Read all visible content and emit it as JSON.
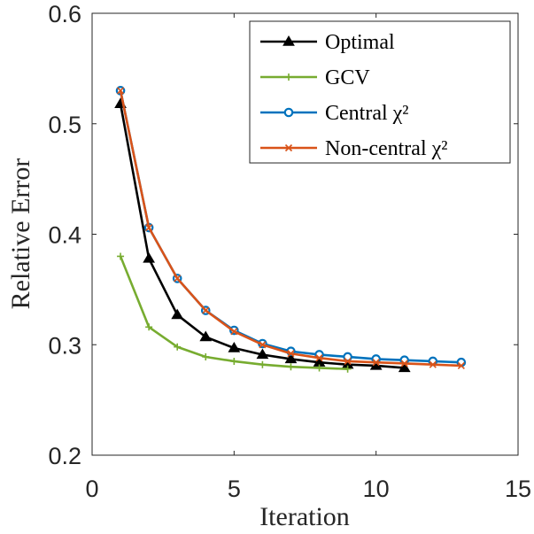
{
  "chart_data": {
    "type": "line",
    "xlabel": "Iteration",
    "ylabel": "Relative Error",
    "xlim": [
      0,
      15
    ],
    "ylim": [
      0.2,
      0.6
    ],
    "xticks": [
      0,
      5,
      10,
      15
    ],
    "yticks": [
      0.2,
      0.3,
      0.4,
      0.5,
      0.6
    ],
    "xtick_labels": [
      "0",
      "5",
      "10",
      "15"
    ],
    "ytick_labels": [
      "0.2",
      "0.3",
      "0.4",
      "0.5",
      "0.6"
    ],
    "grid": false,
    "legend_position": "top-right",
    "series": [
      {
        "name": "Optimal",
        "legend_label": "Optimal",
        "color": "#000000",
        "marker": "triangle",
        "x": [
          1,
          2,
          3,
          4,
          5,
          6,
          7,
          8,
          9,
          10,
          11
        ],
        "y": [
          0.518,
          0.378,
          0.327,
          0.307,
          0.297,
          0.291,
          0.287,
          0.284,
          0.282,
          0.281,
          0.279
        ]
      },
      {
        "name": "GCV",
        "legend_label": "GCV",
        "color": "#77ac30",
        "marker": "plus",
        "x": [
          1,
          2,
          3,
          4,
          5,
          6,
          7,
          8,
          9
        ],
        "y": [
          0.38,
          0.316,
          0.298,
          0.289,
          0.285,
          0.282,
          0.28,
          0.279,
          0.278
        ]
      },
      {
        "name": "Central chi2",
        "legend_label": "Central χ²",
        "color": "#0072bd",
        "marker": "circle",
        "x": [
          1,
          2,
          3,
          4,
          5,
          6,
          7,
          8,
          9,
          10,
          11,
          12,
          13
        ],
        "y": [
          0.53,
          0.406,
          0.36,
          0.331,
          0.313,
          0.301,
          0.294,
          0.291,
          0.289,
          0.287,
          0.286,
          0.285,
          0.284
        ]
      },
      {
        "name": "Non-central chi2",
        "legend_label": "Non-central χ²",
        "color": "#d95319",
        "marker": "x",
        "x": [
          1,
          2,
          3,
          4,
          5,
          6,
          7,
          8,
          9,
          10,
          11,
          12,
          13
        ],
        "y": [
          0.53,
          0.406,
          0.36,
          0.331,
          0.312,
          0.3,
          0.292,
          0.288,
          0.285,
          0.284,
          0.283,
          0.282,
          0.281
        ]
      }
    ]
  }
}
